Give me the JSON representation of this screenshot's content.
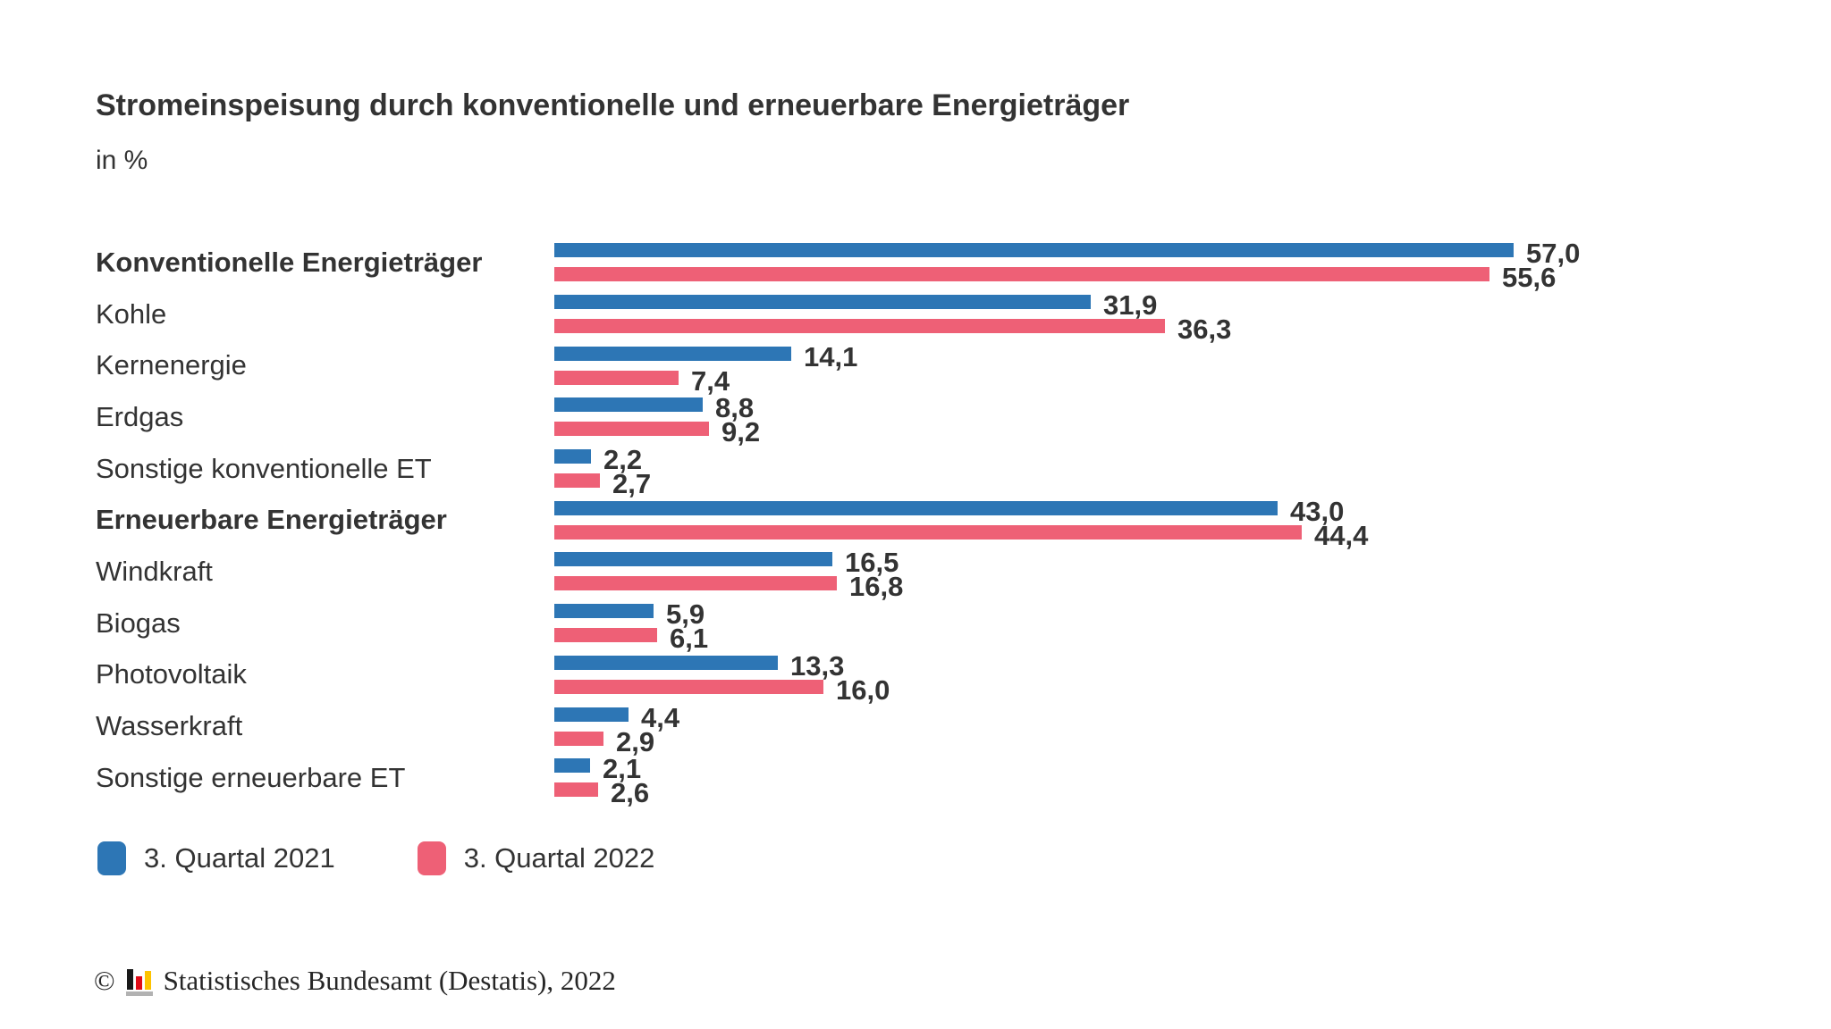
{
  "title": "Stromeinspeisung durch konventionelle und erneuerbare Energieträger",
  "subtitle": "in %",
  "colors": {
    "series1": "#2d76b5",
    "series2": "#ee6076",
    "text": "#333333",
    "logo_black": "#1a1a1a",
    "logo_red": "#e10b17",
    "logo_gold": "#fdc300",
    "logo_grey": "#b2b2b2"
  },
  "legend": {
    "items": [
      {
        "label": "3. Quartal 2021",
        "color": "#2d76b5"
      },
      {
        "label": "3. Quartal 2022",
        "color": "#ee6076"
      }
    ]
  },
  "footer": {
    "copyright": "©",
    "source": "Statistisches Bundesamt (Destatis), 2022",
    "logo": "destatis-bar-chart-icon"
  },
  "chart_data": {
    "type": "bar",
    "orientation": "horizontal",
    "title": "Stromeinspeisung durch konventionelle und erneuerbare Energieträger",
    "unit": "%",
    "xlabel": "",
    "ylabel": "",
    "xlim": [
      0,
      60
    ],
    "grid": false,
    "legend_position": "bottom",
    "value_labels": true,
    "decimal_separator": ",",
    "categories": [
      "Konventionelle Energieträger",
      "Kohle",
      "Kernenergie",
      "Erdgas",
      "Sonstige konventionelle ET",
      "Erneuerbare Energieträger",
      "Windkraft",
      "Biogas",
      "Photovoltaik",
      "Wasserkraft",
      "Sonstige erneuerbare ET"
    ],
    "series": [
      {
        "name": "3. Quartal 2021",
        "color": "#2d76b5",
        "values": [
          57.0,
          31.9,
          14.1,
          8.8,
          2.2,
          43.0,
          16.5,
          5.9,
          13.3,
          4.4,
          2.1
        ]
      },
      {
        "name": "3. Quartal 2022",
        "color": "#ee6076",
        "values": [
          55.6,
          36.3,
          7.4,
          9.2,
          2.7,
          44.4,
          16.8,
          6.1,
          16.0,
          2.9,
          2.6
        ]
      }
    ],
    "rows": [
      {
        "label": "Konventionelle Energieträger",
        "bold": true,
        "values": [
          57.0,
          55.6
        ],
        "values_display": [
          "57,0",
          "55,6"
        ]
      },
      {
        "label": "Kohle",
        "bold": false,
        "values": [
          31.9,
          36.3
        ],
        "values_display": [
          "31,9",
          "36,3"
        ]
      },
      {
        "label": "Kernenergie",
        "bold": false,
        "values": [
          14.1,
          7.4
        ],
        "values_display": [
          "14,1",
          "7,4"
        ]
      },
      {
        "label": "Erdgas",
        "bold": false,
        "values": [
          8.8,
          9.2
        ],
        "values_display": [
          "8,8",
          "9,2"
        ]
      },
      {
        "label": "Sonstige konventionelle ET",
        "bold": false,
        "values": [
          2.2,
          2.7
        ],
        "values_display": [
          "2,2",
          "2,7"
        ]
      },
      {
        "label": "Erneuerbare Energieträger",
        "bold": true,
        "values": [
          43.0,
          44.4
        ],
        "values_display": [
          "43,0",
          "44,4"
        ]
      },
      {
        "label": "Windkraft",
        "bold": false,
        "values": [
          16.5,
          16.8
        ],
        "values_display": [
          "16,5",
          "16,8"
        ]
      },
      {
        "label": "Biogas",
        "bold": false,
        "values": [
          5.9,
          6.1
        ],
        "values_display": [
          "5,9",
          "6,1"
        ]
      },
      {
        "label": "Photovoltaik",
        "bold": false,
        "values": [
          13.3,
          16.0
        ],
        "values_display": [
          "13,3",
          "16,0"
        ]
      },
      {
        "label": "Wasserkraft",
        "bold": false,
        "values": [
          4.4,
          2.9
        ],
        "values_display": [
          "4,4",
          "2,9"
        ]
      },
      {
        "label": "Sonstige erneuerbare ET",
        "bold": false,
        "values": [
          2.1,
          2.6
        ],
        "values_display": [
          "2,1",
          "2,6"
        ]
      }
    ]
  }
}
